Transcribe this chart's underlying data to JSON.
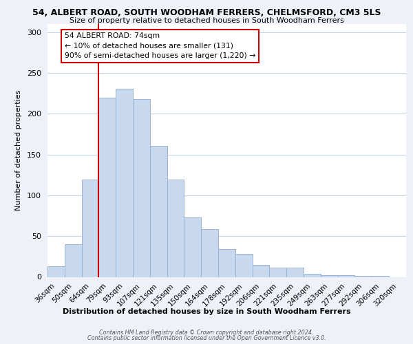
{
  "title_line1": "54, ALBERT ROAD, SOUTH WOODHAM FERRERS, CHELMSFORD, CM3 5LS",
  "title_line2": "Size of property relative to detached houses in South Woodham Ferrers",
  "xlabel": "Distribution of detached houses by size in South Woodham Ferrers",
  "ylabel": "Number of detached properties",
  "categories": [
    "36sqm",
    "50sqm",
    "64sqm",
    "79sqm",
    "93sqm",
    "107sqm",
    "121sqm",
    "135sqm",
    "150sqm",
    "164sqm",
    "178sqm",
    "192sqm",
    "206sqm",
    "221sqm",
    "235sqm",
    "249sqm",
    "263sqm",
    "277sqm",
    "292sqm",
    "306sqm",
    "320sqm"
  ],
  "values": [
    13,
    40,
    119,
    220,
    231,
    218,
    161,
    119,
    73,
    59,
    34,
    28,
    15,
    11,
    11,
    4,
    2,
    2,
    1,
    1,
    0
  ],
  "bar_color": "#c8d8ee",
  "bar_edge_color": "#9ab4d4",
  "vline_x_index": 3,
  "vline_color": "#cc0000",
  "annotation_title": "54 ALBERT ROAD: 74sqm",
  "annotation_line1": "← 10% of detached houses are smaller (131)",
  "annotation_line2": "90% of semi-detached houses are larger (1,220) →",
  "annotation_box_color": "#ffffff",
  "annotation_box_edge_color": "#cc0000",
  "ylim": [
    0,
    310
  ],
  "yticks": [
    0,
    50,
    100,
    150,
    200,
    250,
    300
  ],
  "footnote1": "Contains HM Land Registry data © Crown copyright and database right 2024.",
  "footnote2": "Contains public sector information licensed under the Open Government Licence v3.0.",
  "bg_color": "#eef2f8",
  "plot_bg_color": "#ffffff",
  "grid_color": "#c8d4e4"
}
